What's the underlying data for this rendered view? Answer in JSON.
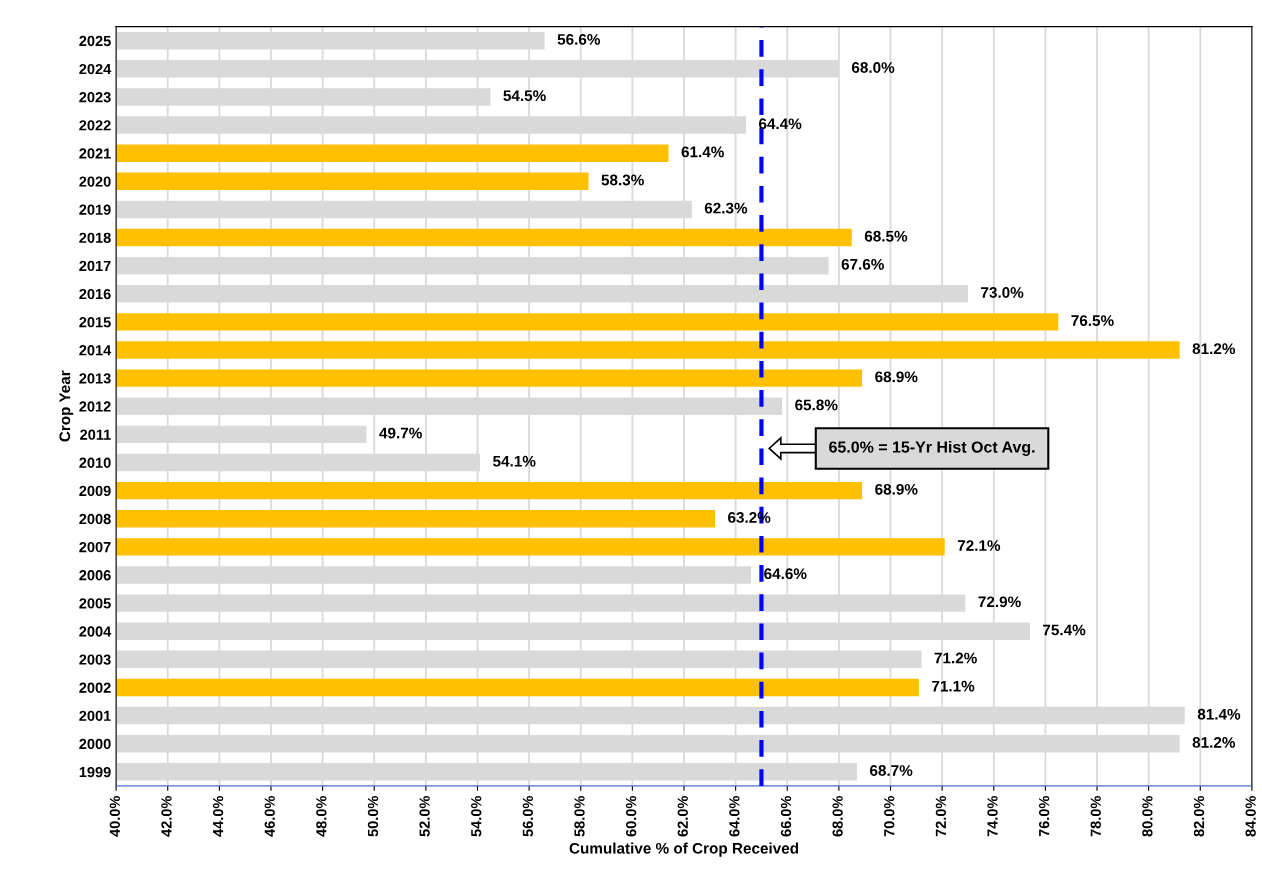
{
  "chart_data": {
    "type": "bar",
    "orientation": "horizontal",
    "xlabel": "Cumulative % of Crop Received",
    "ylabel": "Crop Year",
    "categories": [
      "2025",
      "2024",
      "2023",
      "2022",
      "2021",
      "2020",
      "2019",
      "2018",
      "2017",
      "2016",
      "2015",
      "2014",
      "2013",
      "2012",
      "2011",
      "2010",
      "2009",
      "2008",
      "2007",
      "2006",
      "2005",
      "2004",
      "2003",
      "2002",
      "2001",
      "2000",
      "1999"
    ],
    "values": [
      56.6,
      68.0,
      54.5,
      64.4,
      61.4,
      58.3,
      62.3,
      68.5,
      67.6,
      73.0,
      76.5,
      81.2,
      68.9,
      65.8,
      49.7,
      54.1,
      68.9,
      63.2,
      72.1,
      64.6,
      72.9,
      75.4,
      71.2,
      71.1,
      81.4,
      81.2,
      68.7
    ],
    "value_labels": [
      "56.6%",
      "68.0%",
      "54.5%",
      "64.4%",
      "61.4%",
      "58.3%",
      "62.3%",
      "68.5%",
      "67.6%",
      "73.0%",
      "76.5%",
      "81.2%",
      "68.9%",
      "65.8%",
      "49.7%",
      "54.1%",
      "68.9%",
      "63.2%",
      "72.1%",
      "64.6%",
      "72.9%",
      "75.4%",
      "71.2%",
      "71.1%",
      "81.4%",
      "81.2%",
      "68.7%"
    ],
    "colors": [
      "#d9d9d9",
      "#d9d9d9",
      "#d9d9d9",
      "#d9d9d9",
      "#ffc000",
      "#ffc000",
      "#d9d9d9",
      "#ffc000",
      "#d9d9d9",
      "#d9d9d9",
      "#ffc000",
      "#ffc000",
      "#ffc000",
      "#d9d9d9",
      "#d9d9d9",
      "#d9d9d9",
      "#ffc000",
      "#ffc000",
      "#ffc000",
      "#d9d9d9",
      "#d9d9d9",
      "#d9d9d9",
      "#d9d9d9",
      "#ffc000",
      "#d9d9d9",
      "#d9d9d9",
      "#d9d9d9"
    ],
    "xlim": [
      40,
      84
    ],
    "xticks": [
      {
        "value": 40,
        "label": "40.0%"
      },
      {
        "value": 42,
        "label": "42.0%"
      },
      {
        "value": 44,
        "label": "44.0%"
      },
      {
        "value": 46,
        "label": "46.0%"
      },
      {
        "value": 48,
        "label": "48.0%"
      },
      {
        "value": 50,
        "label": "50.0%"
      },
      {
        "value": 52,
        "label": "52.0%"
      },
      {
        "value": 54,
        "label": "54.0%"
      },
      {
        "value": 56,
        "label": "56.0%"
      },
      {
        "value": 58,
        "label": "58.0%"
      },
      {
        "value": 60,
        "label": "60.0%"
      },
      {
        "value": 62,
        "label": "62.0%"
      },
      {
        "value": 64,
        "label": "64.0%"
      },
      {
        "value": 66,
        "label": "66.0%"
      },
      {
        "value": 68,
        "label": "68.0%"
      },
      {
        "value": 70,
        "label": "70.0%"
      },
      {
        "value": 72,
        "label": "72.0%"
      },
      {
        "value": 74,
        "label": "74.0%"
      },
      {
        "value": 76,
        "label": "76.0%"
      },
      {
        "value": 78,
        "label": "78.0%"
      },
      {
        "value": 80,
        "label": "80.0%"
      },
      {
        "value": 82,
        "label": "82.0%"
      },
      {
        "value": 84,
        "label": "84.0%"
      }
    ],
    "grid": "x",
    "ref_lines": [
      {
        "axis": "x",
        "value": 65,
        "color": "#0000ff",
        "line_style": "dashed"
      }
    ],
    "annotations": [
      "65.0% = 15-Yr Hist Oct Avg."
    ],
    "legend": false
  }
}
